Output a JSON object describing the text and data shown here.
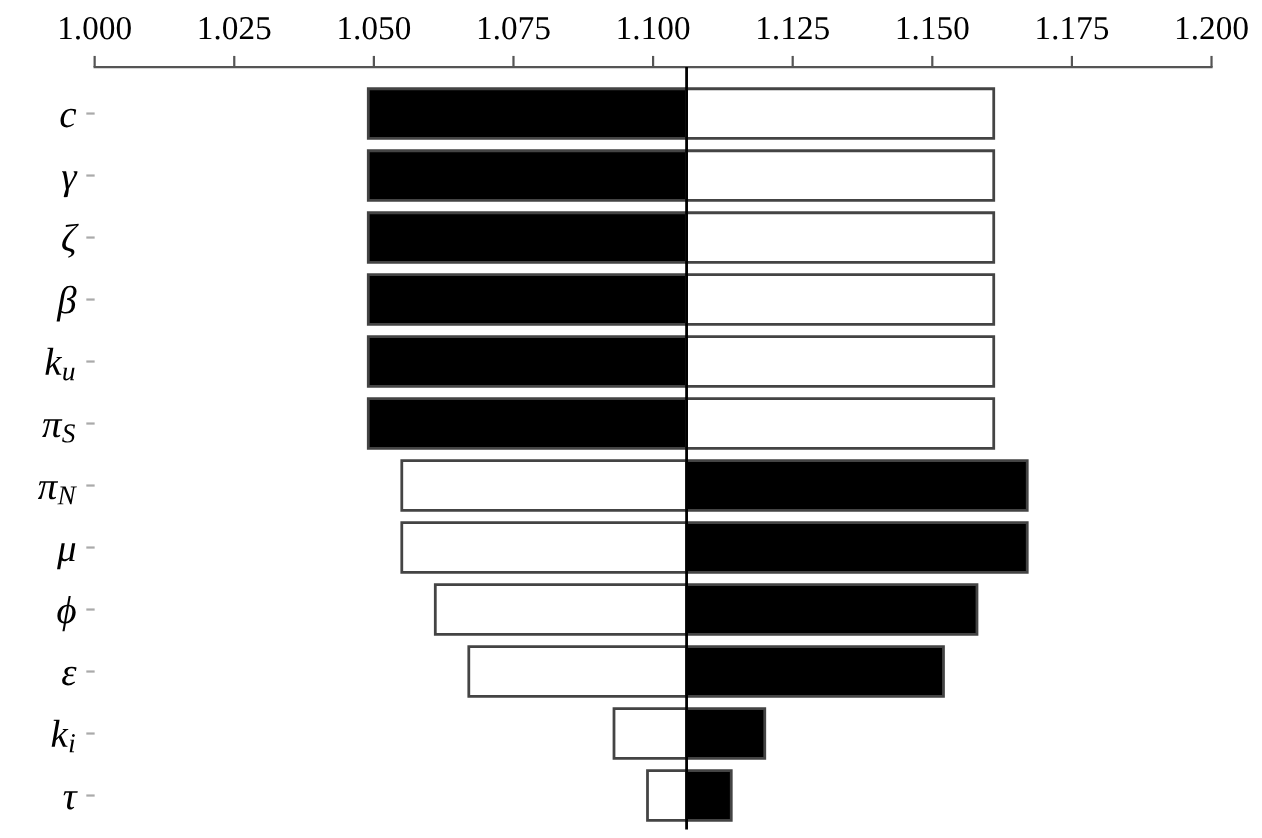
{
  "chart_data": {
    "type": "bar",
    "orientation": "horizontal",
    "categories": [
      "c",
      "γ",
      "ζ",
      "β",
      "k$_{u}$",
      "π$_{S}$",
      "π$_{N}$",
      "μ",
      "ϕ",
      "ε",
      "k$_{i}$",
      "τ"
    ],
    "series": [
      {
        "color": "#000000",
        "base": [
          1.049,
          1.049,
          1.049,
          1.049,
          1.049,
          1.049,
          1.106,
          1.106,
          1.106,
          1.106,
          1.106,
          1.106
        ],
        "values": [
          0.057,
          0.057,
          0.057,
          0.057,
          0.057,
          0.057,
          0.061,
          0.061,
          0.052,
          0.046,
          0.014,
          0.008
        ]
      },
      {
        "color": "#ffffff",
        "base": [
          1.106,
          1.106,
          1.106,
          1.106,
          1.106,
          1.106,
          1.055,
          1.055,
          1.061,
          1.067,
          1.093,
          1.099
        ],
        "values": [
          0.055,
          0.055,
          0.055,
          0.055,
          0.055,
          0.055,
          0.051,
          0.051,
          0.045,
          0.039,
          0.013,
          0.007
        ]
      }
    ],
    "xlim": [
      1.0,
      1.2
    ],
    "xticks": [
      {
        "value": 1.0,
        "label": "1.000"
      },
      {
        "value": 1.025,
        "label": "1.025"
      },
      {
        "value": 1.05,
        "label": "1.050"
      },
      {
        "value": 1.075,
        "label": "1.075"
      },
      {
        "value": 1.1,
        "label": "1.100"
      },
      {
        "value": 1.125,
        "label": "1.125"
      },
      {
        "value": 1.15,
        "label": "1.150"
      },
      {
        "value": 1.175,
        "label": "1.175"
      },
      {
        "value": 1.2,
        "label": "1.200"
      }
    ],
    "ref_lines": [
      {
        "axis": "x",
        "value": 1.106,
        "color": "#000000"
      }
    ],
    "grid": false,
    "legend": false
  }
}
